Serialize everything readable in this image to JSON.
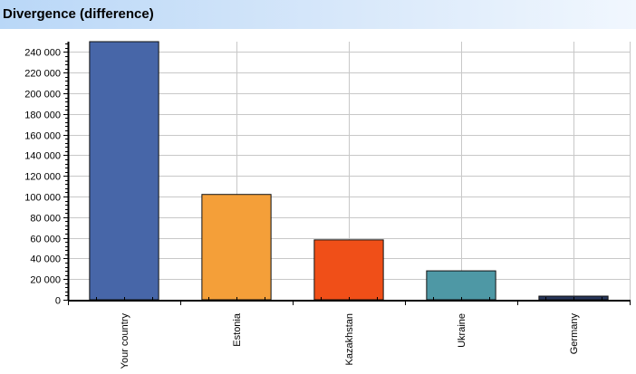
{
  "header": {
    "title": "Divergence (difference)"
  },
  "chart_data": {
    "type": "bar",
    "title": "Divergence (difference)",
    "xlabel": "",
    "ylabel": "",
    "categories": [
      "Your country",
      "Estonia",
      "Kazakhstan",
      "Ukraine",
      "Germany"
    ],
    "values": [
      250000,
      102000,
      58000,
      28000,
      3500
    ],
    "colors": [
      "#4766a8",
      "#f49f39",
      "#f04f18",
      "#4e98a5",
      "#26355a"
    ],
    "ylim": [
      0,
      250000
    ],
    "yticks": [
      0,
      20000,
      40000,
      60000,
      80000,
      100000,
      120000,
      140000,
      160000,
      180000,
      200000,
      220000,
      240000
    ],
    "ytick_labels": [
      "0",
      "20 000",
      "40 000",
      "60 000",
      "80 000",
      "100 000",
      "120 000",
      "140 000",
      "160 000",
      "180 000",
      "200 000",
      "220 000",
      "240 000"
    ],
    "grid": true,
    "legend": false
  }
}
